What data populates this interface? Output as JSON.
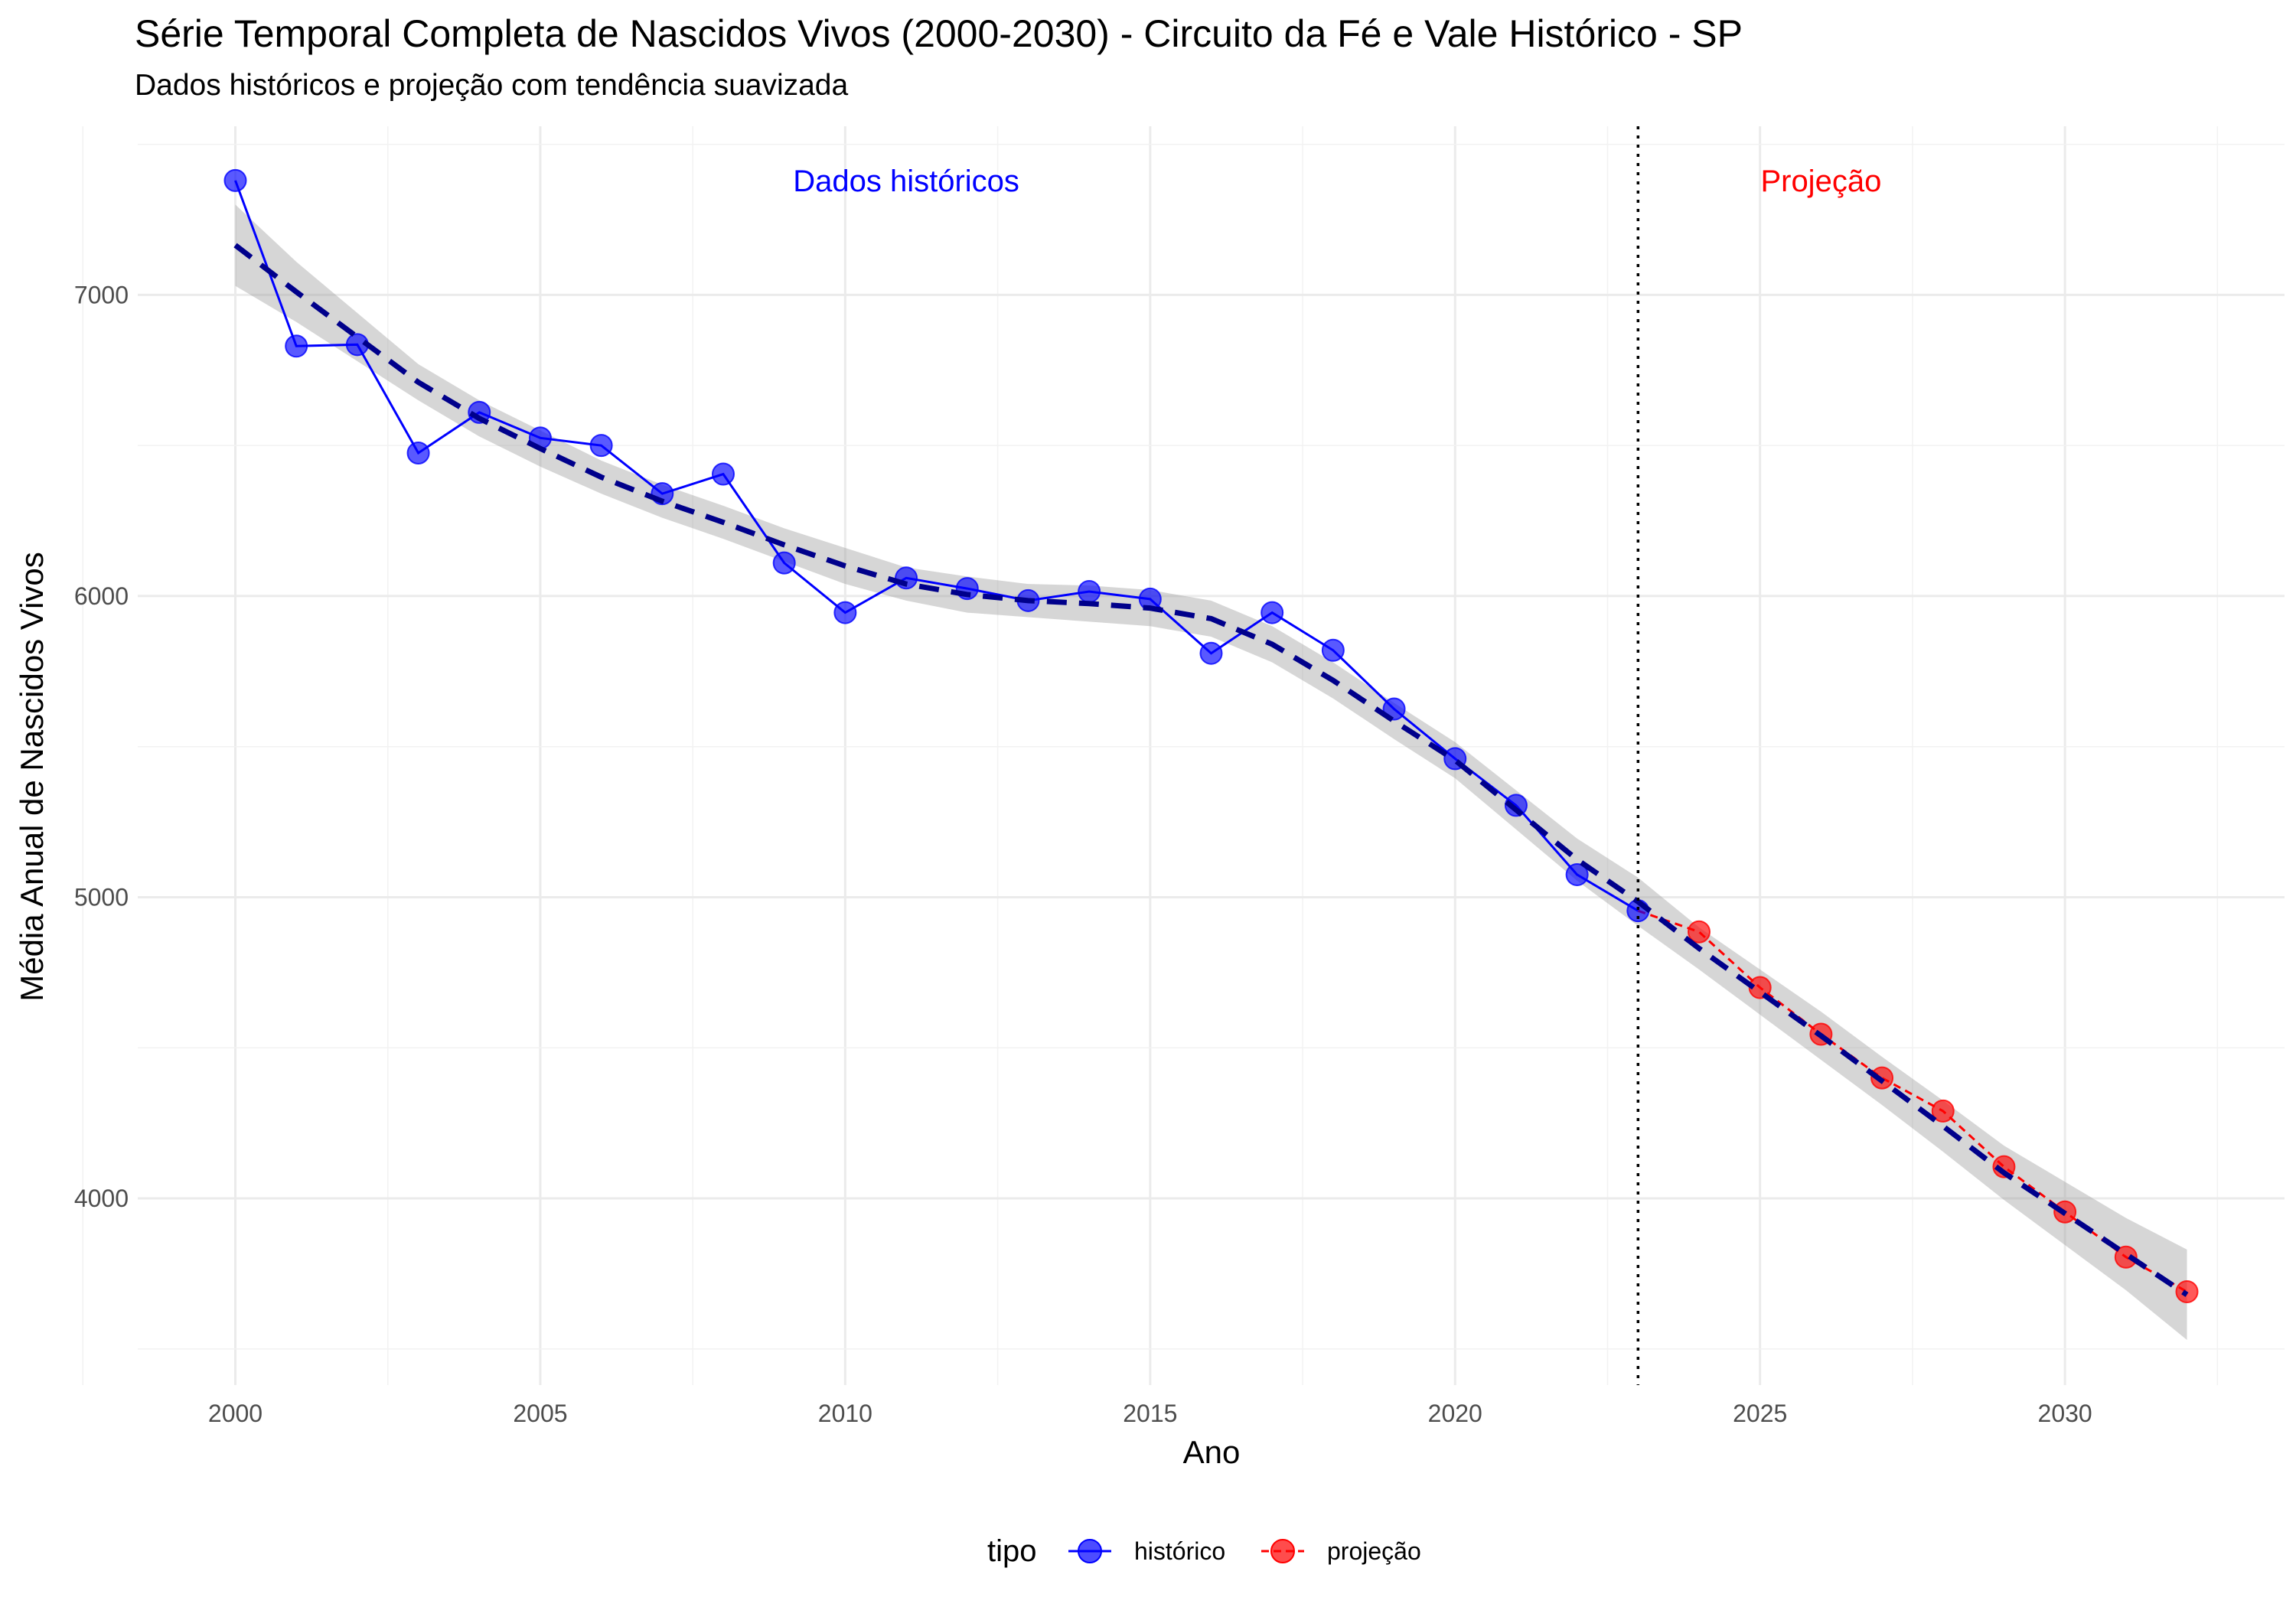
{
  "chart_data": {
    "type": "line",
    "title": "Série Temporal Completa de Nascidos Vivos (2000-2030) -  Circuito da Fé e Vale Histórico - SP",
    "subtitle": "Dados históricos e projeção com tendência suavizada",
    "xlabel": "Ano",
    "ylabel": "Média Anual de Nascidos Vivos",
    "xlim": [
      1998.4,
      2033.6
    ],
    "ylim": [
      3380,
      7560
    ],
    "x_ticks": [
      2000,
      2005,
      2010,
      2015,
      2020,
      2025,
      2030
    ],
    "y_ticks": [
      4000,
      5000,
      6000,
      7000
    ],
    "grid": true,
    "legend": {
      "title": "tipo",
      "position": "bottom",
      "entries": [
        "histórico",
        "projeção"
      ]
    },
    "annotations": [
      {
        "text": "Dados históricos",
        "x": 2011,
        "y": 7380,
        "color": "#0000FF"
      },
      {
        "text": "Projeção",
        "x": 2026,
        "y": 7380,
        "color": "#FF0000"
      }
    ],
    "vline": {
      "x": 2023,
      "style": "dotted"
    },
    "series": [
      {
        "name": "histórico",
        "color": "#0000FF",
        "x": [
          2000,
          2001,
          2002,
          2003,
          2004,
          2005,
          2006,
          2007,
          2008,
          2009,
          2010,
          2011,
          2012,
          2013,
          2014,
          2015,
          2016,
          2017,
          2018,
          2019,
          2020,
          2021,
          2022,
          2023
        ],
        "y": [
          7380,
          6830,
          6835,
          6475,
          6610,
          6525,
          6500,
          6340,
          6405,
          6110,
          5945,
          6060,
          6025,
          5985,
          6015,
          5990,
          5810,
          5945,
          5820,
          5625,
          5460,
          5305,
          5075,
          4955
        ]
      },
      {
        "name": "projeção",
        "color": "#FF0000",
        "x": [
          2024,
          2025,
          2026,
          2027,
          2028,
          2029,
          2030,
          2031,
          2032
        ],
        "y": [
          4885,
          4700,
          4545,
          4400,
          4290,
          4105,
          3955,
          3805,
          3690
        ]
      }
    ],
    "trend": {
      "color": "#00008B",
      "x": [
        2000,
        2001,
        2002,
        2003,
        2004,
        2005,
        2006,
        2007,
        2008,
        2009,
        2010,
        2011,
        2012,
        2013,
        2014,
        2015,
        2016,
        2017,
        2018,
        2019,
        2020,
        2021,
        2022,
        2023,
        2024,
        2025,
        2026,
        2027,
        2028,
        2029,
        2030,
        2031,
        2032
      ],
      "y": [
        7165,
        7010,
        6860,
        6710,
        6590,
        6490,
        6395,
        6315,
        6245,
        6170,
        6100,
        6040,
        6005,
        5985,
        5975,
        5960,
        5925,
        5840,
        5720,
        5585,
        5455,
        5290,
        5125,
        4985,
        4830,
        4685,
        4540,
        4390,
        4240,
        4085,
        3950,
        3815,
        3680
      ],
      "ci_low": [
        7030,
        6910,
        6780,
        6650,
        6530,
        6430,
        6340,
        6260,
        6190,
        6115,
        6040,
        5985,
        5945,
        5930,
        5915,
        5900,
        5865,
        5780,
        5660,
        5525,
        5395,
        5225,
        5055,
        4905,
        4760,
        4610,
        4460,
        4310,
        4155,
        3995,
        3845,
        3695,
        3530
      ],
      "ci_high": [
        7300,
        7110,
        6940,
        6770,
        6650,
        6550,
        6450,
        6370,
        6300,
        6225,
        6160,
        6095,
        6065,
        6040,
        6035,
        6020,
        5985,
        5900,
        5780,
        5645,
        5515,
        5355,
        5195,
        5065,
        4900,
        4760,
        4620,
        4470,
        4325,
        4175,
        4055,
        3935,
        3830
      ]
    }
  }
}
